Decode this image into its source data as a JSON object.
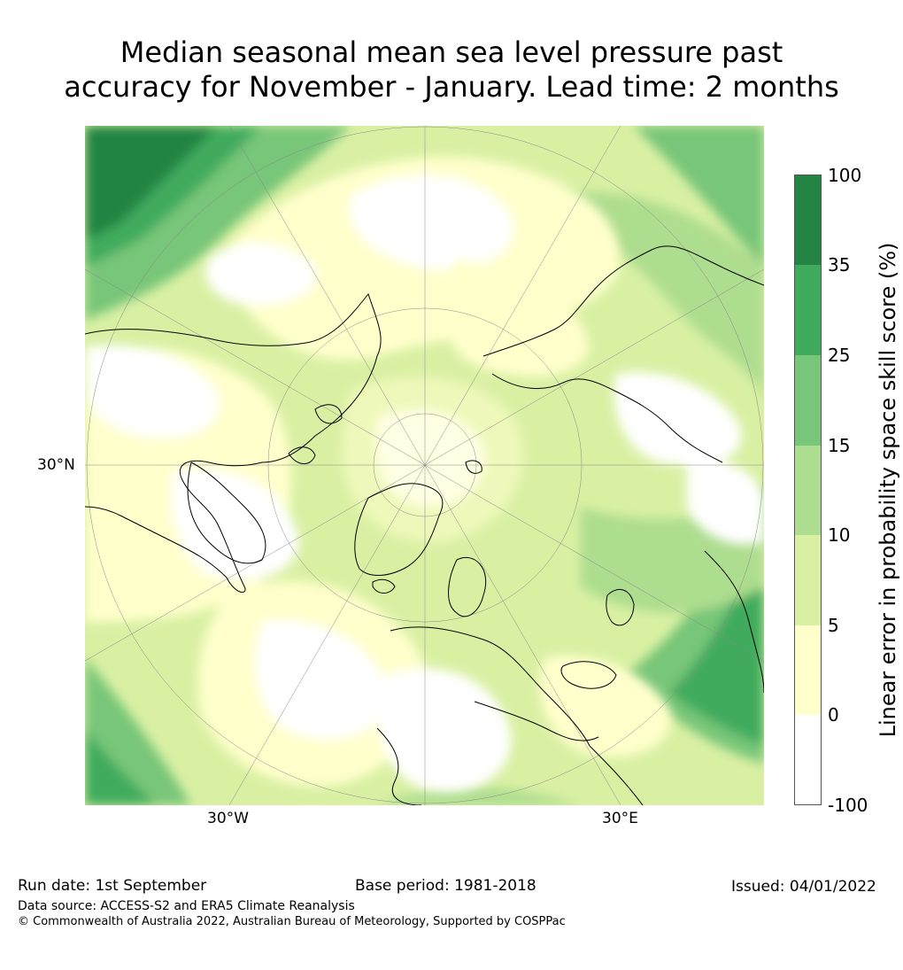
{
  "title": {
    "line1": "Median seasonal mean sea level pressure past",
    "line2": "accuracy for November - January. Lead time: 2 months"
  },
  "map": {
    "labels": {
      "lat_30n": "30°N",
      "lon_30w": "30°W",
      "lon_30e": "30°E"
    },
    "colors": {
      "white": "#ffffff",
      "cream": "#ffffcc",
      "light_yellow_green": "#d9f0a3",
      "light_green": "#addd8e",
      "mid_green": "#78c679",
      "green": "#41ab5d",
      "dark_green": "#238443"
    }
  },
  "colorbar": {
    "label": "Linear error in probability space skill score (%)",
    "ticks": [
      "100",
      "35",
      "25",
      "15",
      "10",
      "5",
      "0",
      "-100"
    ],
    "colors": [
      "#ffffff",
      "#ffffcc",
      "#d9f0a3",
      "#addd8e",
      "#78c679",
      "#41ab5d",
      "#238443"
    ]
  },
  "footer": {
    "run_date": "Run date: 1st September",
    "base_period": "Base period: 1981-2018",
    "issued": "Issued: 04/01/2022",
    "data_source": "Data source: ACCESS-S2 and ERA5 Climate Reanalysis",
    "copyright": "© Commonwealth of Australia 2022, Australian Bureau of Meteorology, Supported by COSPPac"
  }
}
